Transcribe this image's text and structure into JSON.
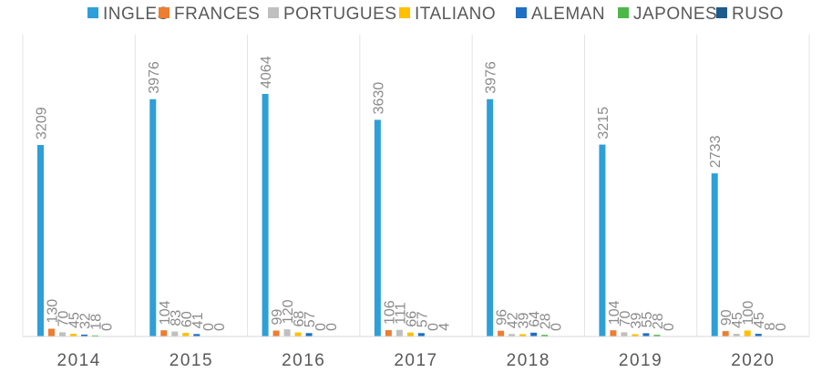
{
  "chart_data": {
    "type": "bar",
    "title": "",
    "xlabel": "",
    "ylabel": "",
    "ylim": [
      0,
      4200
    ],
    "grid": false,
    "legend_position": "top",
    "categories": [
      "2014",
      "2015",
      "2016",
      "2017",
      "2018",
      "2019",
      "2020"
    ],
    "series": [
      {
        "name": "INGLES",
        "color": "#2e9fd8",
        "values": [
          3209,
          3976,
          4064,
          3630,
          3976,
          3215,
          2733
        ]
      },
      {
        "name": "FRANCES",
        "color": "#ed7d31",
        "values": [
          130,
          104,
          99,
          106,
          96,
          104,
          90
        ]
      },
      {
        "name": "PORTUGUES",
        "color": "#bfbfbf",
        "values": [
          70,
          83,
          120,
          111,
          42,
          70,
          45
        ]
      },
      {
        "name": "ITALIANO",
        "color": "#ffc000",
        "values": [
          45,
          60,
          68,
          66,
          39,
          39,
          100
        ]
      },
      {
        "name": "ALEMAN",
        "color": "#1f6fc5",
        "values": [
          32,
          41,
          57,
          57,
          64,
          55,
          45
        ]
      },
      {
        "name": "JAPONES",
        "color": "#4db848",
        "values": [
          18,
          0,
          0,
          0,
          28,
          28,
          8
        ]
      },
      {
        "name": "RUSO",
        "color": "#1d5b8c",
        "values": [
          0,
          0,
          0,
          4,
          0,
          0,
          0
        ]
      }
    ]
  }
}
